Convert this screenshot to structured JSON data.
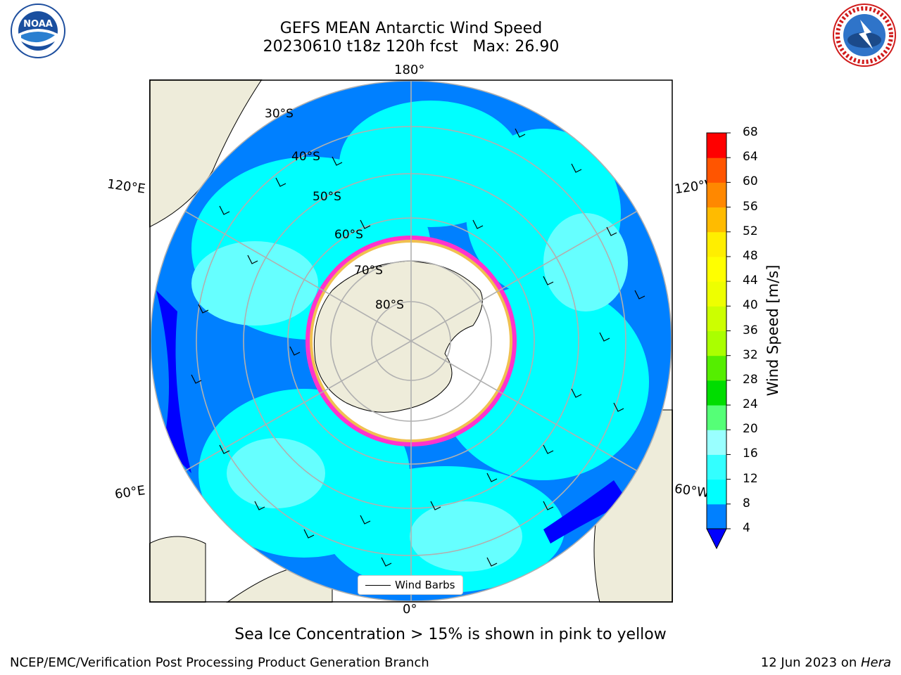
{
  "header": {
    "title_line1": "GEFS MEAN Antarctic Wind Speed",
    "title_line2": "20230610 t18z 120h fcst   Max: 26.90"
  },
  "logos": {
    "left": {
      "name": "noaa-logo",
      "text": "NOAA"
    },
    "right": {
      "name": "nws-logo",
      "text": "NATIONAL WEATHER SERVICE"
    }
  },
  "map": {
    "projection": "south-polar-stereographic",
    "longitude_labels": {
      "top": "180°",
      "bottom": "0°",
      "upper_left": "120°E",
      "upper_right": "120°W",
      "lower_left": "60°E",
      "lower_right": "60°W"
    },
    "latitude_labels": [
      "30°S",
      "40°S",
      "50°S",
      "60°S",
      "70°S",
      "80°S"
    ],
    "legend": {
      "label": "Wind Barbs"
    },
    "colors": {
      "land": "#eeecda",
      "ocean_low": "#0080ff",
      "ocean_mid": "#00ffff",
      "ocean_high": "#66ffff",
      "ice_edge": "#ff33cc",
      "ice_fill": "#ffffff"
    }
  },
  "colorbar": {
    "label": "Wind Speed [m/s]",
    "ticks": [
      "4",
      "8",
      "12",
      "16",
      "20",
      "24",
      "28",
      "32",
      "36",
      "40",
      "44",
      "48",
      "52",
      "56",
      "60",
      "64",
      "68"
    ],
    "colors": [
      "#0080ff",
      "#00ffff",
      "#33ffff",
      "#99ffff",
      "#55ff77",
      "#00dd00",
      "#55ee00",
      "#aaff00",
      "#ccff00",
      "#eeff00",
      "#ffff00",
      "#ffee00",
      "#ffbb00",
      "#ff8800",
      "#ff5500",
      "#ff0000"
    ],
    "extend_color": "#0000ff"
  },
  "note": "Sea Ice Concentration > 15% is shown in pink to yellow",
  "footer": {
    "left": "NCEP/EMC/Verification Post Processing Product Generation Branch",
    "right_prefix": "12 Jun 2023 on ",
    "right_host": "Hera"
  }
}
